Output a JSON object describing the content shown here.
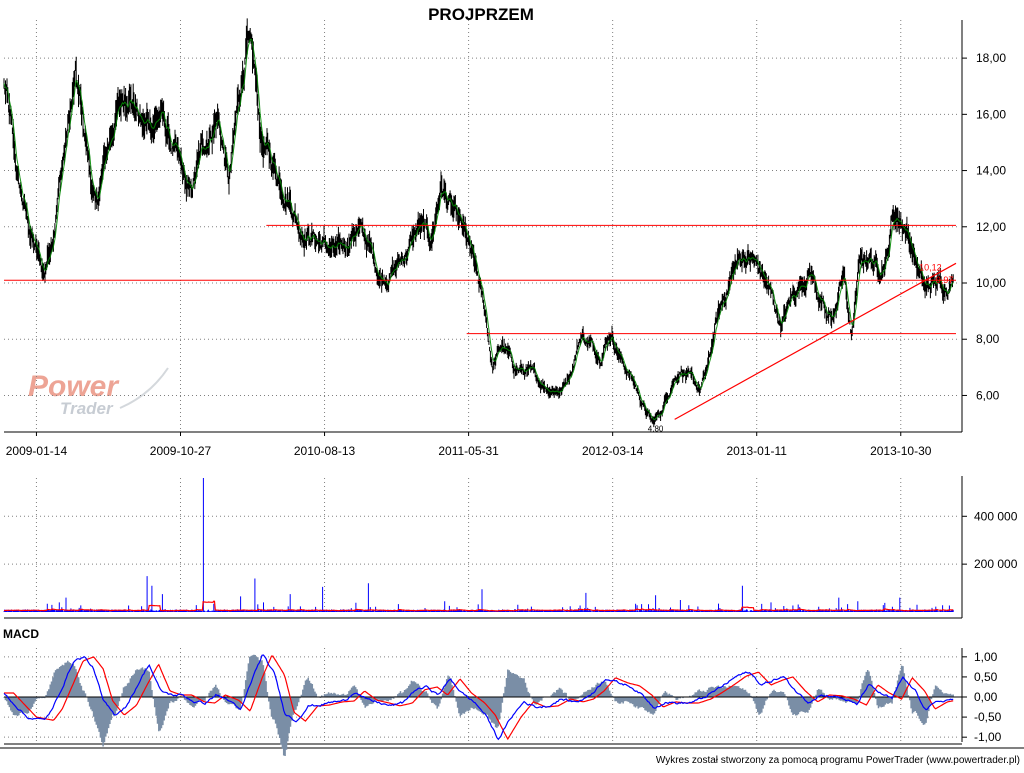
{
  "title": "PROJPRZEM",
  "footer": "Wykres został stworzony za pomocą programu PowerTrader (www.powertrader.pl)",
  "watermark": {
    "line1": "Power",
    "line2": "Trader"
  },
  "colors": {
    "price": "#000000",
    "price_trend": "#008800",
    "levels": "#ff0000",
    "volume": "#0000ff",
    "volume_avg": "#ff0000",
    "macd": "#0000ff",
    "signal": "#ff0000",
    "histogram": "#7a8ea6",
    "grid": "#808080",
    "watermark": "#e05a40"
  },
  "chart_data": [
    {
      "type": "line",
      "name": "price",
      "x_ticks": [
        "2009-01-14",
        "2009-10-27",
        "2010-08-13",
        "2011-05-31",
        "2012-03-14",
        "2013-01-11",
        "2013-10-30"
      ],
      "y_ticks": [
        "6,00",
        "8,00",
        "10,00",
        "12,00",
        "14,00",
        "16,00",
        "18,00"
      ],
      "ylim": [
        4.7,
        19.0
      ],
      "price_keyframes": [
        [
          0,
          17.0
        ],
        [
          0.3,
          16.5
        ],
        [
          1.5,
          13.5
        ],
        [
          3,
          11.5
        ],
        [
          4.2,
          10.3
        ],
        [
          5.2,
          12.0
        ],
        [
          6,
          14.0
        ],
        [
          7.5,
          17.2
        ],
        [
          8.6,
          15.0
        ],
        [
          9.6,
          12.5
        ],
        [
          10.4,
          14.0
        ],
        [
          11.4,
          15.6
        ],
        [
          13,
          17.0
        ],
        [
          14.6,
          15.5
        ],
        [
          16.4,
          16.0
        ],
        [
          18,
          14.5
        ],
        [
          19.5,
          13.0
        ],
        [
          21,
          15.0
        ],
        [
          22.4,
          16.0
        ],
        [
          23.6,
          13.5
        ],
        [
          24.6,
          16.5
        ],
        [
          25.4,
          18.5
        ],
        [
          26.2,
          17.5
        ],
        [
          27,
          15.0
        ],
        [
          28.5,
          14.0
        ],
        [
          30,
          13.0
        ],
        [
          31,
          12.0
        ],
        [
          33,
          11.5
        ],
        [
          35,
          11.0
        ],
        [
          37,
          12.0
        ],
        [
          38,
          11.5
        ],
        [
          39.5,
          10.2
        ],
        [
          41,
          10.5
        ],
        [
          42.5,
          11.3
        ],
        [
          43.5,
          12.0
        ],
        [
          44.8,
          11.5
        ],
        [
          45.8,
          13.5
        ],
        [
          47,
          12.5
        ],
        [
          48.5,
          11.5
        ],
        [
          49.6,
          10.2
        ],
        [
          50.5,
          8.8
        ],
        [
          51.2,
          7.0
        ],
        [
          52.2,
          7.8
        ],
        [
          53.5,
          7.0
        ],
        [
          55,
          6.8
        ],
        [
          57,
          6.3
        ],
        [
          58.5,
          6.2
        ],
        [
          59.5,
          7.0
        ],
        [
          60.5,
          8.2
        ],
        [
          61.5,
          7.8
        ],
        [
          62.5,
          7.5
        ],
        [
          63.6,
          8.3
        ],
        [
          64.8,
          7.2
        ],
        [
          66,
          6.5
        ],
        [
          67.2,
          5.5
        ],
        [
          68,
          5.0
        ],
        [
          69,
          5.5
        ],
        [
          70,
          6.5
        ],
        [
          71,
          7.0
        ],
        [
          72,
          6.5
        ],
        [
          73,
          6.2
        ],
        [
          73.8,
          7.0
        ],
        [
          74.6,
          8.5
        ],
        [
          75.5,
          9.5
        ],
        [
          76.5,
          10.5
        ],
        [
          77.5,
          11.0
        ],
        [
          78.5,
          10.8
        ],
        [
          79.5,
          10.3
        ],
        [
          80.5,
          9.5
        ],
        [
          81.5,
          8.5
        ],
        [
          82.6,
          9.5
        ],
        [
          83.5,
          10.0
        ],
        [
          84.5,
          10.5
        ],
        [
          85.5,
          9.5
        ],
        [
          86.3,
          8.6
        ],
        [
          87.2,
          9.0
        ],
        [
          88,
          10.5
        ],
        [
          88.8,
          8.0
        ],
        [
          89.6,
          10.5
        ],
        [
          90.6,
          11.0
        ],
        [
          91.6,
          10.5
        ],
        [
          92.6,
          11.0
        ],
        [
          93.2,
          12.5
        ],
        [
          94.2,
          12.2
        ],
        [
          95,
          11.5
        ],
        [
          95.8,
          10.5
        ],
        [
          96.6,
          9.7
        ],
        [
          97.4,
          10.0
        ],
        [
          98.4,
          9.9
        ],
        [
          99.5,
          10.15
        ]
      ],
      "min_label": "4,80",
      "last_labels": [
        "10,12",
        "9,97"
      ],
      "horizontal_levels": [
        {
          "value": 10.1,
          "x_from": 0,
          "x_to": 100
        },
        {
          "value": 12.05,
          "x_from": 27.5,
          "x_to": 100
        },
        {
          "value": 8.2,
          "x_from": 48.5,
          "x_to": 100
        }
      ],
      "trendline": {
        "from": [
          70.3,
          5.15
        ],
        "to": [
          100,
          10.7
        ]
      }
    },
    {
      "type": "bar",
      "name": "volume",
      "y_ticks": [
        "200 000",
        "400 000"
      ],
      "ylim": [
        0,
        560000
      ],
      "spikes": [
        [
          5.8,
          40000
        ],
        [
          6.5,
          60000
        ],
        [
          15,
          150000
        ],
        [
          15.5,
          110000
        ],
        [
          16.6,
          75000
        ],
        [
          20.9,
          560000
        ],
        [
          24.8,
          65000
        ],
        [
          26.3,
          140000
        ],
        [
          27.2,
          40000
        ],
        [
          30,
          75000
        ],
        [
          33.4,
          105000
        ],
        [
          38.2,
          120000
        ],
        [
          46.2,
          45000
        ],
        [
          50.1,
          95000
        ],
        [
          61,
          80000
        ],
        [
          68.3,
          70000
        ],
        [
          70.9,
          50000
        ],
        [
          74.9,
          35000
        ],
        [
          77.4,
          110000
        ],
        [
          80.4,
          40000
        ],
        [
          87.5,
          60000
        ],
        [
          89.5,
          45000
        ],
        [
          93.9,
          60000
        ],
        [
          95.7,
          30000
        ]
      ],
      "avg_bumps": [
        [
          20.9,
          90000
        ],
        [
          15.2,
          50000
        ],
        [
          77.4,
          30000
        ]
      ]
    },
    {
      "type": "line",
      "name": "MACD",
      "title": "MACD",
      "y_ticks": [
        "-1,00",
        "-0,50",
        "0,00",
        "0,50",
        "1,00"
      ],
      "ylim": [
        -1.12,
        1.22
      ],
      "macd_keyframes": [
        [
          0,
          0.1
        ],
        [
          1.2,
          -0.2
        ],
        [
          2.4,
          -0.5
        ],
        [
          4.2,
          -0.58
        ],
        [
          5.1,
          -0.3
        ],
        [
          6.2,
          0.3
        ],
        [
          7.3,
          0.9
        ],
        [
          8.4,
          1.0
        ],
        [
          9.4,
          0.7
        ],
        [
          10.4,
          -0.1
        ],
        [
          11.6,
          -0.45
        ],
        [
          12.9,
          -0.2
        ],
        [
          14,
          0.3
        ],
        [
          15.2,
          0.82
        ],
        [
          16.4,
          0.15
        ],
        [
          17.6,
          0.05
        ],
        [
          18.7,
          0.05
        ],
        [
          20,
          -0.12
        ],
        [
          21.1,
          -0.15
        ],
        [
          22.2,
          0.05
        ],
        [
          23.6,
          -0.08
        ],
        [
          24.8,
          -0.35
        ],
        [
          26.1,
          0.5
        ],
        [
          27.1,
          1.05
        ],
        [
          28.4,
          0.55
        ],
        [
          29.4,
          -0.38
        ],
        [
          30.6,
          -0.6
        ],
        [
          31.9,
          -0.22
        ],
        [
          33.1,
          -0.2
        ],
        [
          34.5,
          -0.12
        ],
        [
          35.7,
          -0.1
        ],
        [
          36.8,
          0.15
        ],
        [
          38.1,
          -0.08
        ],
        [
          39.4,
          -0.15
        ],
        [
          40.5,
          -0.22
        ],
        [
          41.8,
          -0.15
        ],
        [
          43.1,
          0.18
        ],
        [
          44.4,
          0.25
        ],
        [
          45.5,
          0.05
        ],
        [
          46.8,
          0.45
        ],
        [
          48,
          0.1
        ],
        [
          49.4,
          -0.15
        ],
        [
          50.5,
          -0.45
        ],
        [
          51.8,
          -1.05
        ],
        [
          53.2,
          -0.5
        ],
        [
          54.5,
          -0.12
        ],
        [
          55.8,
          -0.25
        ],
        [
          57.1,
          -0.22
        ],
        [
          58.4,
          -0.05
        ],
        [
          59.7,
          -0.12
        ],
        [
          60.8,
          -0.05
        ],
        [
          61.9,
          0.15
        ],
        [
          63.1,
          0.48
        ],
        [
          64.4,
          0.35
        ],
        [
          65.6,
          0.28
        ],
        [
          66.9,
          0.05
        ],
        [
          68.1,
          -0.25
        ],
        [
          69.4,
          -0.12
        ],
        [
          70.5,
          -0.15
        ],
        [
          71.8,
          -0.15
        ],
        [
          73.1,
          -0.05
        ],
        [
          74.2,
          0.1
        ],
        [
          75.5,
          0.3
        ],
        [
          76.8,
          0.52
        ],
        [
          78.1,
          0.62
        ],
        [
          79.4,
          0.3
        ],
        [
          80.6,
          0.42
        ],
        [
          81.7,
          0.5
        ],
        [
          83,
          0.15
        ],
        [
          84.3,
          -0.12
        ],
        [
          85.5,
          0.05
        ],
        [
          86.8,
          0.03
        ],
        [
          88.1,
          -0.05
        ],
        [
          89.4,
          -0.2
        ],
        [
          90.6,
          0.3
        ],
        [
          91.8,
          0.1
        ],
        [
          93.1,
          -0.05
        ],
        [
          94.2,
          0.48
        ],
        [
          95.5,
          0.15
        ],
        [
          96.6,
          -0.3
        ],
        [
          97.9,
          -0.12
        ],
        [
          99.5,
          -0.05
        ]
      ],
      "lag": 1.0
    }
  ]
}
